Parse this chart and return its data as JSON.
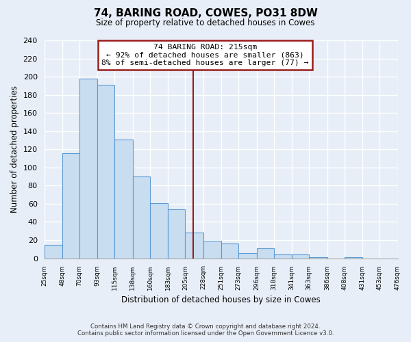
{
  "title": "74, BARING ROAD, COWES, PO31 8DW",
  "subtitle": "Size of property relative to detached houses in Cowes",
  "xlabel": "Distribution of detached houses by size in Cowes",
  "ylabel": "Number of detached properties",
  "bar_values": [
    15,
    116,
    198,
    191,
    131,
    90,
    61,
    54,
    28,
    19,
    16,
    6,
    11,
    4,
    4,
    1,
    0,
    1,
    0,
    0
  ],
  "bin_edges": [
    25,
    48,
    70,
    93,
    115,
    138,
    160,
    183,
    205,
    228,
    251,
    273,
    296,
    318,
    341,
    363,
    386,
    408,
    431,
    453,
    476
  ],
  "tick_labels": [
    "25sqm",
    "48sqm",
    "70sqm",
    "93sqm",
    "115sqm",
    "138sqm",
    "160sqm",
    "183sqm",
    "205sqm",
    "228sqm",
    "251sqm",
    "273sqm",
    "296sqm",
    "318sqm",
    "341sqm",
    "363sqm",
    "386sqm",
    "408sqm",
    "431sqm",
    "453sqm",
    "476sqm"
  ],
  "bar_color": "#c9ddf0",
  "bar_edge_color": "#5b9bd5",
  "vline_x": 215,
  "vline_color": "#9b1c1c",
  "annotation_title": "74 BARING ROAD: 215sqm",
  "annotation_line1": "← 92% of detached houses are smaller (863)",
  "annotation_line2": "8% of semi-detached houses are larger (77) →",
  "annotation_box_color": "#ffffff",
  "annotation_border_color": "#9b1c1c",
  "ylim": [
    0,
    240
  ],
  "yticks": [
    0,
    20,
    40,
    60,
    80,
    100,
    120,
    140,
    160,
    180,
    200,
    220,
    240
  ],
  "footer1": "Contains HM Land Registry data © Crown copyright and database right 2024.",
  "footer2": "Contains public sector information licensed under the Open Government Licence v3.0.",
  "background_color": "#e8eef7",
  "plot_bg_color": "#e8eef7",
  "grid_color": "#ffffff"
}
